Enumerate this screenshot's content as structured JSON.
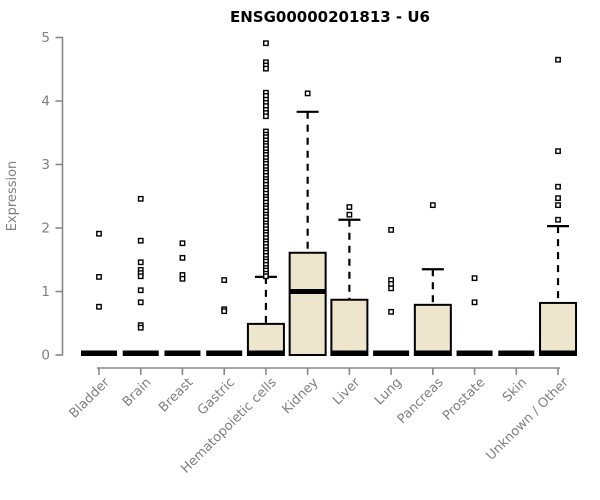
{
  "title": "ENSG00000201813 - U6",
  "colors": {
    "background": "#FFFFFF",
    "box_fill": "#EDE6CC",
    "box_stroke": "#000000",
    "median": "#000000",
    "whisker": "#000000",
    "outlier_stroke": "#000000",
    "outlier_fill": "#FFFFFF",
    "axis_line": "#888888",
    "tick_text": "#7F7F7F",
    "title_text": "#000000"
  },
  "y_axis": {
    "label": "Expression",
    "ticks": [
      0,
      1,
      2,
      3,
      4,
      5
    ],
    "min": 0,
    "max": 5
  },
  "chart_data": {
    "type": "boxplot",
    "title": "ENSG00000201813 - U6",
    "xlabel": "",
    "ylabel": "Expression",
    "ylim": [
      0,
      5
    ],
    "grid": false,
    "categories": [
      "Bladder",
      "Brain",
      "Breast",
      "Gastric",
      "Hematopoietic cells",
      "Kidney",
      "Liver",
      "Lung",
      "Pancreas",
      "Prostate",
      "Skin",
      "Unknown / Other"
    ],
    "series": [
      {
        "name": "Bladder",
        "q1": 0,
        "median": 0,
        "q3": 0,
        "whisker_low": 0,
        "whisker_high": 0,
        "outliers": [
          1.91,
          1.23,
          0.76
        ]
      },
      {
        "name": "Brain",
        "q1": 0,
        "median": 0,
        "q3": 0,
        "whisker_low": 0,
        "whisker_high": 0,
        "outliers": [
          2.46,
          1.8,
          1.46,
          1.34,
          1.29,
          1.24,
          1.02,
          0.83,
          0.47,
          0.43
        ]
      },
      {
        "name": "Breast",
        "q1": 0,
        "median": 0,
        "q3": 0,
        "whisker_low": 0,
        "whisker_high": 0,
        "outliers": [
          1.76,
          1.53,
          1.26,
          1.2
        ]
      },
      {
        "name": "Gastric",
        "q1": 0,
        "median": 0,
        "q3": 0,
        "whisker_low": 0,
        "whisker_high": 0,
        "outliers": [
          1.18,
          0.72,
          0.69
        ]
      },
      {
        "name": "Hematopoietic cells",
        "q1": 0,
        "median": 0,
        "q3": 0.49,
        "whisker_low": 0,
        "whisker_high": 1.23,
        "outliers": [
          4.91,
          4.61,
          4.56,
          4.51,
          4.13,
          4.08,
          4.02,
          3.97,
          3.92,
          3.86,
          3.81,
          3.76,
          3.52,
          3.47,
          3.43,
          3.38,
          3.33,
          3.29,
          3.24,
          3.19,
          3.15,
          3.1,
          3.05,
          3.01,
          2.96,
          2.91,
          2.87,
          2.82,
          2.77,
          2.73,
          2.68,
          2.63,
          2.59,
          2.54,
          2.49,
          2.45,
          2.4,
          2.35,
          2.31,
          2.26,
          2.21,
          2.17,
          2.12,
          2.07,
          2.03,
          1.98,
          1.93,
          1.89,
          1.84,
          1.79,
          1.75,
          1.7,
          1.65,
          1.61,
          1.56,
          1.51,
          1.47,
          1.42,
          1.37,
          1.33,
          1.28,
          1.24
        ]
      },
      {
        "name": "Kidney",
        "q1": 0,
        "median": 1.0,
        "q3": 1.61,
        "whisker_low": 0,
        "whisker_high": 3.83,
        "outliers": [
          4.12
        ]
      },
      {
        "name": "Liver",
        "q1": 0,
        "median": 0,
        "q3": 0.87,
        "whisker_low": 0,
        "whisker_high": 2.13,
        "outliers": [
          2.33,
          2.21
        ]
      },
      {
        "name": "Lung",
        "q1": 0,
        "median": 0,
        "q3": 0,
        "whisker_low": 0,
        "whisker_high": 0,
        "outliers": [
          1.97,
          1.18,
          1.12,
          1.05,
          0.68
        ]
      },
      {
        "name": "Pancreas",
        "q1": 0,
        "median": 0,
        "q3": 0.79,
        "whisker_low": 0,
        "whisker_high": 1.35,
        "outliers": [
          2.36
        ]
      },
      {
        "name": "Prostate",
        "q1": 0,
        "median": 0,
        "q3": 0,
        "whisker_low": 0,
        "whisker_high": 0,
        "outliers": [
          1.21,
          0.83
        ]
      },
      {
        "name": "Skin",
        "q1": 0,
        "median": 0,
        "q3": 0,
        "whisker_low": 0,
        "whisker_high": 0,
        "outliers": []
      },
      {
        "name": "Unknown / Other",
        "q1": 0,
        "median": 0,
        "q3": 0.82,
        "whisker_low": 0,
        "whisker_high": 2.03,
        "outliers": [
          4.65,
          3.21,
          2.65,
          2.47,
          2.36,
          2.13
        ]
      }
    ]
  }
}
